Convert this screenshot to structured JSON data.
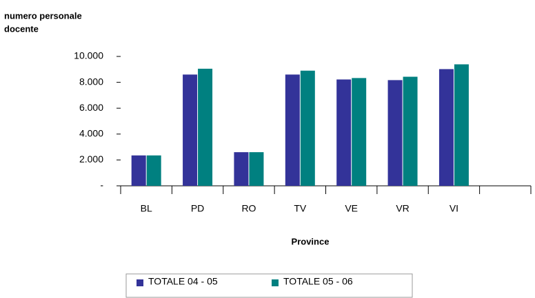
{
  "chart_data": {
    "type": "bar",
    "y_label": [
      "numero personale",
      "docente"
    ],
    "x_label": "Province",
    "categories": [
      "BL",
      "PD",
      "RO",
      "TV",
      "VE",
      "VR",
      "VI",
      null
    ],
    "series": [
      {
        "name": "TOTALE 04 - 05",
        "color": "#333399",
        "values": [
          2350,
          8600,
          2600,
          8600,
          8220,
          8170,
          9020,
          null
        ]
      },
      {
        "name": "TOTALE 05 - 06",
        "color": "#008080",
        "values": [
          2350,
          9050,
          2600,
          8900,
          8330,
          8430,
          9390,
          null
        ]
      }
    ],
    "ylim": [
      0,
      10000
    ],
    "yticks": [
      {
        "value": 0,
        "label": "-"
      },
      {
        "value": 2000,
        "label": "2.000"
      },
      {
        "value": 4000,
        "label": "4.000"
      },
      {
        "value": 6000,
        "label": "6.000"
      },
      {
        "value": 8000,
        "label": "8.000"
      },
      {
        "value": 10000,
        "label": "10.000"
      }
    ],
    "grid": false
  }
}
